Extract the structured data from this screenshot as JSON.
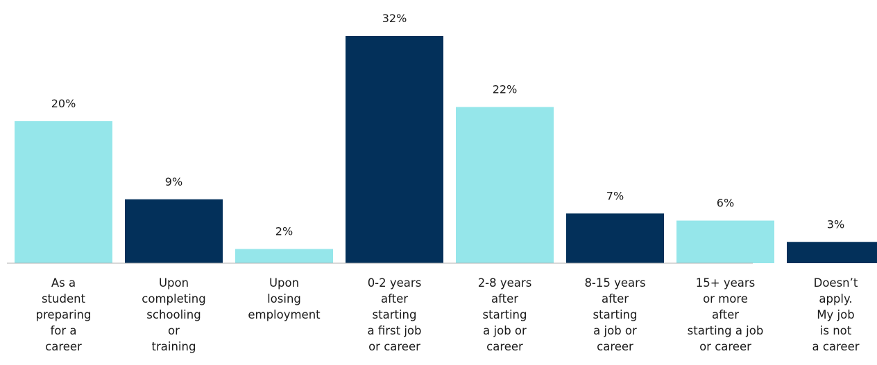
{
  "chart_data": {
    "type": "bar",
    "title": "",
    "xlabel": "",
    "ylabel": "",
    "ylim": [
      0,
      33
    ],
    "grid": false,
    "legend": "none",
    "categories": [
      [
        "As a",
        "student",
        "preparing",
        "for a",
        "career"
      ],
      [
        "Upon",
        "completing",
        "schooling",
        "or",
        "training"
      ],
      [
        "Upon",
        "losing",
        "employment"
      ],
      [
        "0-2 years",
        "after",
        "starting",
        "a first job",
        "or career"
      ],
      [
        "2-8 years",
        "after",
        "starting",
        "a job or",
        "career"
      ],
      [
        "8-15 years",
        "after",
        "starting",
        "a job or",
        "career"
      ],
      [
        "15+ years",
        "or more",
        "after",
        "starting a job",
        "or career"
      ],
      [
        "Doesn’t",
        "apply.",
        "My job",
        "is not",
        "a career"
      ]
    ],
    "values": [
      20,
      9,
      2,
      32,
      22,
      7,
      6,
      3
    ],
    "value_labels": [
      "20%",
      "9%",
      "2%",
      "32%",
      "22%",
      "7%",
      "6%",
      "3%"
    ],
    "colors": [
      "#95e6ea",
      "#03305a",
      "#95e6ea",
      "#03305a",
      "#95e6ea",
      "#03305a",
      "#95e6ea",
      "#03305a"
    ],
    "axis_color": "#b0b0b0"
  }
}
